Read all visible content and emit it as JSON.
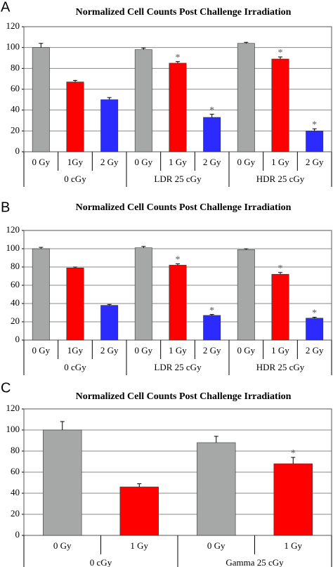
{
  "chart_data": [
    {
      "type": "bar",
      "panel": "A",
      "title": "Normalized Cell Counts Post Challenge Irradiation",
      "categories": [
        "0 Gy",
        "1Gy",
        "2 Gy",
        "0 Gy",
        "1 Gy",
        "2 Gy",
        "0 Gy",
        "1 Gy",
        "2 Gy"
      ],
      "groups": [
        "0 cGy",
        "LDR 25 cGy",
        "HDR 25 cGy"
      ],
      "values": [
        100,
        67,
        50,
        98,
        85,
        33,
        104,
        89,
        20
      ],
      "errors": [
        4,
        1.5,
        2,
        1.5,
        1.5,
        3,
        1,
        2,
        2
      ],
      "significance": [
        null,
        null,
        null,
        null,
        "*",
        "*",
        null,
        "*",
        "*"
      ],
      "colors": [
        "#a6a8a7",
        "#ff0000",
        "#2b2bff",
        "#a6a8a7",
        "#ff0000",
        "#2b2bff",
        "#a6a8a7",
        "#ff0000",
        "#2b2bff"
      ],
      "ylim": [
        0,
        120
      ],
      "yticks": [
        0,
        20,
        40,
        60,
        80,
        100,
        120
      ],
      "grid": true
    },
    {
      "type": "bar",
      "panel": "B",
      "title": "Normalized Cell Counts Post Challenge Irradiation",
      "categories": [
        "0 Gy",
        "1Gy",
        "2 Gy",
        "0 Gy",
        "1 Gy",
        "2 Gy",
        "0 Gy",
        "1 Gy",
        "2 Gy"
      ],
      "groups": [
        "0 cGy",
        "LDR 25 cGy",
        "HDR 25 cGy"
      ],
      "values": [
        100,
        79,
        38,
        101,
        82,
        27,
        99,
        72,
        24
      ],
      "errors": [
        1.5,
        1,
        1,
        1.5,
        1.5,
        1,
        1,
        2,
        1
      ],
      "significance": [
        null,
        null,
        null,
        null,
        "*",
        "*",
        null,
        "*",
        "*"
      ],
      "colors": [
        "#a6a8a7",
        "#ff0000",
        "#2b2bff",
        "#a6a8a7",
        "#ff0000",
        "#2b2bff",
        "#a6a8a7",
        "#ff0000",
        "#2b2bff"
      ],
      "ylim": [
        0,
        120
      ],
      "yticks": [
        0,
        20,
        40,
        60,
        80,
        100,
        120
      ],
      "grid": true
    },
    {
      "type": "bar",
      "panel": "C",
      "title": "Normalized Cell Counts Post Challenge Irradiation",
      "categories": [
        "0 Gy",
        "1 Gy",
        "0 Gy",
        "1 Gy"
      ],
      "groups": [
        "0 cGy",
        "Gamma 25 cGy"
      ],
      "values": [
        100,
        46,
        88,
        68
      ],
      "errors": [
        8,
        3,
        6,
        6
      ],
      "significance": [
        null,
        null,
        null,
        "*"
      ],
      "colors": [
        "#a6a8a7",
        "#ff0000",
        "#a6a8a7",
        "#ff0000"
      ],
      "ylim": [
        0,
        120
      ],
      "yticks": [
        0,
        20,
        40,
        60,
        80,
        100,
        120
      ],
      "grid": true
    }
  ]
}
